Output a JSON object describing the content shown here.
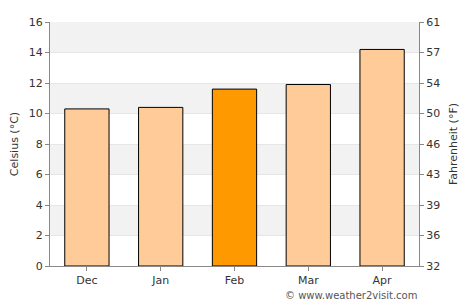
{
  "chart_data": {
    "type": "bar",
    "categories": [
      "Dec",
      "Jan",
      "Feb",
      "Mar",
      "Apr"
    ],
    "values": [
      10.3,
      10.4,
      11.6,
      11.9,
      14.2
    ],
    "colors": [
      "#ffcc99",
      "#ffcc99",
      "#ff9900",
      "#ffcc99",
      "#ffcc99"
    ],
    "ylabel": "Celsius (°C)",
    "ylim": [
      0,
      16
    ],
    "yticks": [
      0,
      2,
      4,
      6,
      8,
      10,
      12,
      14,
      16
    ],
    "y2label": "Fahrenheit (°F)",
    "y2lim": [
      32,
      60.8
    ],
    "y2ticks": [
      32,
      {
        "value": 35.6,
        "label": "36"
      },
      {
        "value": 39.2,
        "label": "39"
      },
      {
        "value": 42.8,
        "label": "43"
      },
      {
        "value": 46.4,
        "label": "46"
      },
      50,
      {
        "value": 53.6,
        "label": "54"
      },
      {
        "value": 57.2,
        "label": "57"
      },
      {
        "value": 60.8,
        "label": "61"
      }
    ],
    "annotation": "© www.weather2visit.com",
    "grid": true
  }
}
